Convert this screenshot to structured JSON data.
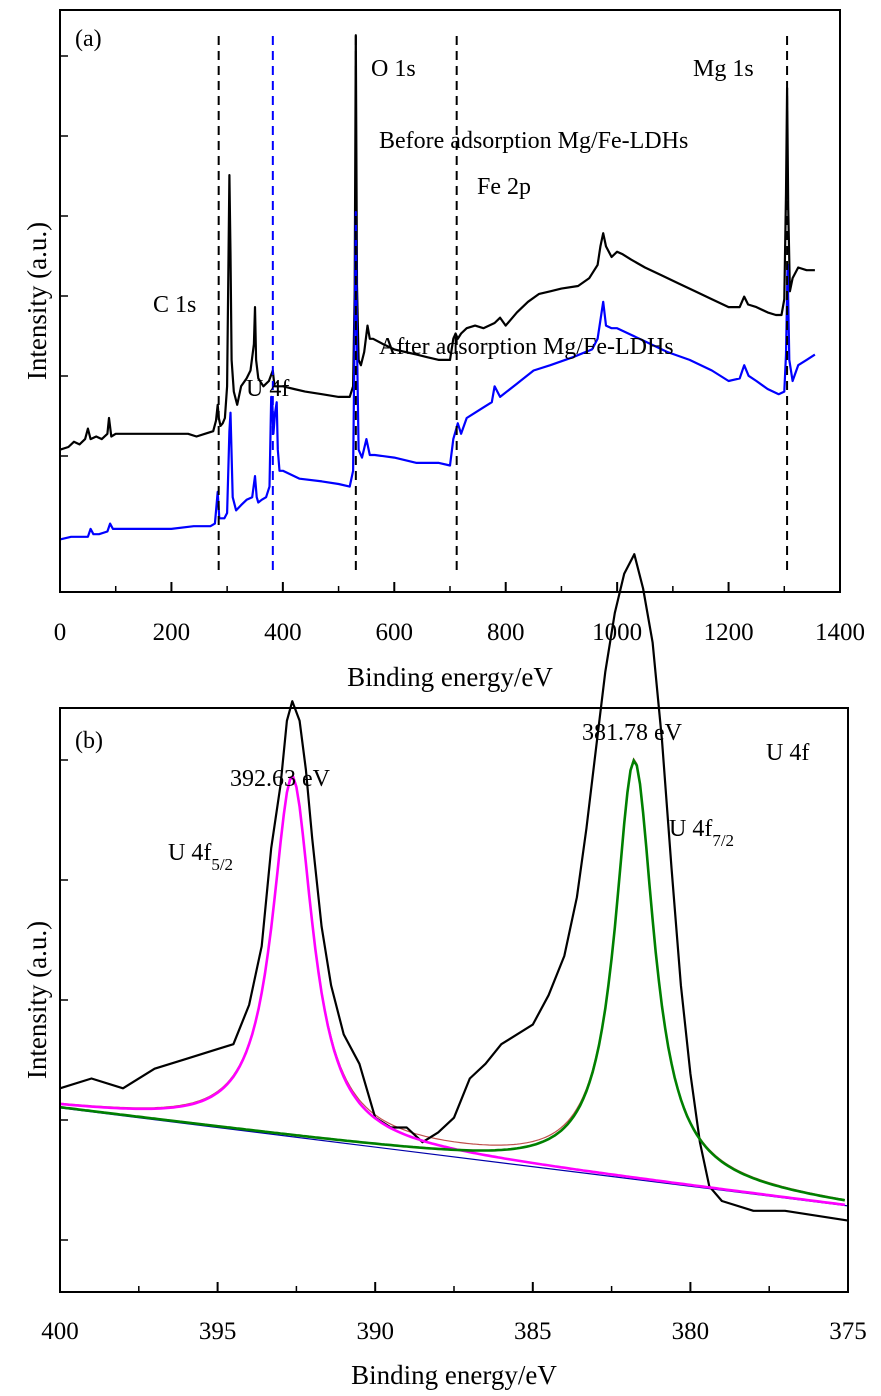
{
  "chart_data": [
    {
      "type": "line",
      "panel_label": "(a)",
      "xlabel": "Binding energy/eV",
      "ylabel": "Intensity (a.u.)",
      "xlim": [
        0,
        1400
      ],
      "xticks": [
        0,
        200,
        400,
        600,
        800,
        1000,
        1200,
        1400
      ],
      "yticks_labeled": false,
      "series": [
        {
          "name": "Before adsorption Mg/Fe-LDHs",
          "color": "#000000",
          "x": [
            0,
            15,
            25,
            35,
            45,
            50,
            55,
            65,
            75,
            85,
            88,
            92,
            100,
            120,
            150,
            180,
            200,
            230,
            245,
            260,
            275,
            280,
            283,
            285,
            288,
            292,
            296,
            300,
            304,
            306,
            308,
            312,
            318,
            325,
            335,
            342,
            348,
            350,
            352,
            356,
            365,
            375,
            382,
            385,
            390,
            400,
            420,
            440,
            470,
            500,
            520,
            526,
            529,
            531,
            533,
            536,
            540,
            546,
            552,
            556,
            562,
            580,
            600,
            620,
            640,
            660,
            680,
            700,
            706,
            710,
            714,
            720,
            730,
            745,
            760,
            780,
            790,
            800,
            820,
            840,
            860,
            880,
            900,
            930,
            950,
            965,
            970,
            975,
            980,
            990,
            1000,
            1010,
            1025,
            1050,
            1080,
            1110,
            1140,
            1170,
            1200,
            1220,
            1228,
            1235,
            1250,
            1270,
            1285,
            1295,
            1300,
            1303,
            1305,
            1307,
            1310,
            1315,
            1325,
            1340,
            1355
          ],
          "y": [
            0.38,
            0.39,
            0.41,
            0.4,
            0.42,
            0.46,
            0.42,
            0.43,
            0.42,
            0.44,
            0.5,
            0.43,
            0.44,
            0.44,
            0.44,
            0.44,
            0.44,
            0.44,
            0.43,
            0.44,
            0.45,
            0.49,
            0.55,
            0.5,
            0.47,
            0.48,
            0.5,
            0.62,
            1.42,
            1.12,
            0.72,
            0.6,
            0.55,
            0.62,
            0.65,
            0.68,
            0.78,
            0.92,
            0.72,
            0.65,
            0.62,
            0.64,
            0.68,
            0.62,
            0.62,
            0.62,
            0.61,
            0.6,
            0.59,
            0.58,
            0.58,
            0.62,
            0.98,
            1.95,
            1.0,
            0.72,
            0.7,
            0.75,
            0.85,
            0.8,
            0.8,
            0.78,
            0.76,
            0.75,
            0.74,
            0.73,
            0.72,
            0.72,
            0.8,
            0.82,
            0.8,
            0.82,
            0.84,
            0.85,
            0.84,
            0.86,
            0.88,
            0.85,
            0.9,
            0.94,
            0.97,
            0.98,
            0.99,
            1.0,
            1.03,
            1.08,
            1.15,
            1.2,
            1.15,
            1.11,
            1.13,
            1.12,
            1.1,
            1.07,
            1.04,
            1.01,
            0.98,
            0.95,
            0.92,
            0.92,
            0.96,
            0.93,
            0.92,
            0.9,
            0.89,
            0.89,
            0.95,
            1.35,
            1.75,
            1.3,
            0.98,
            1.03,
            1.07,
            1.06,
            1.06
          ]
        },
        {
          "name": "After adsorption Mg/Fe-LDHs",
          "color": "#0000ff",
          "x": [
            0,
            20,
            40,
            50,
            55,
            60,
            70,
            85,
            90,
            95,
            110,
            150,
            200,
            240,
            270,
            278,
            283,
            286,
            290,
            295,
            300,
            304,
            306,
            310,
            316,
            325,
            335,
            345,
            350,
            353,
            356,
            362,
            370,
            376,
            379,
            381,
            383,
            386,
            389,
            391,
            394,
            400,
            430,
            470,
            500,
            520,
            526,
            529,
            531,
            533,
            536,
            542,
            550,
            556,
            565,
            600,
            640,
            680,
            700,
            706,
            710,
            714,
            720,
            730,
            745,
            760,
            775,
            780,
            790,
            820,
            850,
            880,
            920,
            955,
            965,
            970,
            975,
            980,
            990,
            1000,
            1020,
            1050,
            1090,
            1130,
            1170,
            1200,
            1220,
            1228,
            1236,
            1250,
            1270,
            1290,
            1300,
            1303,
            1306,
            1309,
            1315,
            1325,
            1340,
            1355
          ],
          "y": [
            0.04,
            0.05,
            0.05,
            0.05,
            0.08,
            0.06,
            0.06,
            0.07,
            0.1,
            0.08,
            0.08,
            0.08,
            0.08,
            0.09,
            0.09,
            0.1,
            0.22,
            0.12,
            0.12,
            0.12,
            0.14,
            0.45,
            0.52,
            0.2,
            0.15,
            0.17,
            0.19,
            0.2,
            0.28,
            0.2,
            0.18,
            0.19,
            0.2,
            0.24,
            0.58,
            0.56,
            0.44,
            0.52,
            0.56,
            0.38,
            0.3,
            0.3,
            0.27,
            0.26,
            0.25,
            0.24,
            0.3,
            0.85,
            1.28,
            0.78,
            0.38,
            0.35,
            0.42,
            0.36,
            0.36,
            0.35,
            0.33,
            0.33,
            0.32,
            0.42,
            0.45,
            0.48,
            0.44,
            0.5,
            0.52,
            0.54,
            0.56,
            0.62,
            0.58,
            0.63,
            0.68,
            0.7,
            0.73,
            0.76,
            0.8,
            0.87,
            0.94,
            0.85,
            0.84,
            0.84,
            0.82,
            0.79,
            0.75,
            0.72,
            0.68,
            0.64,
            0.65,
            0.7,
            0.66,
            0.64,
            0.61,
            0.59,
            0.6,
            0.74,
            1.08,
            0.72,
            0.64,
            0.7,
            0.72,
            0.74
          ]
        }
      ],
      "reference_lines": [
        {
          "x": 284.8,
          "color": "#000000"
        },
        {
          "x": 382,
          "color": "#0000ff"
        },
        {
          "x": 531,
          "color": "#000000"
        },
        {
          "x": 712,
          "color": "#000000"
        },
        {
          "x": 1305,
          "color": "#000000"
        }
      ],
      "annotations": [
        "O 1s",
        "Mg 1s",
        "Before adsorption Mg/Fe-LDHs",
        "Fe 2p",
        "C 1s",
        "After adsorption Mg/Fe-LDHs",
        "U 4f"
      ]
    },
    {
      "type": "line",
      "panel_label": "(b)",
      "xlabel": "Binding energy/eV",
      "ylabel": "Intensity (a.u.)",
      "xlim": [
        400,
        375
      ],
      "x_reversed": true,
      "xticks": [
        400,
        395,
        390,
        385,
        380,
        375
      ],
      "yticks_labeled": false,
      "peaks": [
        {
          "label": "392.63 eV",
          "component": "U 4f",
          "subscript": "5/2",
          "center": 392.63,
          "height": 0.735,
          "fwhm": 1.55,
          "color": "#ff00ff"
        },
        {
          "label": "381.78 eV",
          "component": "U 4f",
          "subscript": "7/2",
          "center": 381.78,
          "height": 0.855,
          "fwhm": 1.5,
          "color": "#008000"
        }
      ],
      "baseline": {
        "x": [
          400,
          375
        ],
        "y": [
          0.29,
          0.09
        ],
        "color": "#0000aa"
      },
      "raw_data": {
        "color": "#000000",
        "x": [
          400,
          399,
          398,
          397,
          396,
          395,
          394.5,
          394,
          393.6,
          393.3,
          393,
          392.8,
          392.63,
          392.4,
          392.2,
          392,
          391.7,
          391.4,
          391,
          390.5,
          390,
          389.5,
          389,
          388.5,
          388,
          387.5,
          387,
          386.5,
          386,
          385.5,
          385,
          384.5,
          384,
          383.6,
          383.3,
          383,
          382.7,
          382.4,
          382.1,
          381.78,
          381.5,
          381.2,
          380.9,
          380.6,
          380.3,
          380,
          379.7,
          379.4,
          379,
          378,
          377,
          376,
          375
        ],
        "y": [
          0.33,
          0.35,
          0.33,
          0.37,
          0.39,
          0.41,
          0.42,
          0.5,
          0.62,
          0.82,
          0.95,
          1.08,
          1.12,
          1.08,
          0.98,
          0.84,
          0.66,
          0.54,
          0.44,
          0.38,
          0.27,
          0.25,
          0.25,
          0.22,
          0.24,
          0.27,
          0.35,
          0.38,
          0.42,
          0.44,
          0.46,
          0.52,
          0.6,
          0.72,
          0.86,
          1.02,
          1.18,
          1.3,
          1.38,
          1.42,
          1.35,
          1.24,
          1.04,
          0.78,
          0.54,
          0.36,
          0.22,
          0.13,
          0.1,
          0.08,
          0.08,
          0.07,
          0.06
        ]
      },
      "annotations": [
        "381.78 eV",
        "392.63 eV",
        "U 4f"
      ]
    }
  ],
  "panel_a": {
    "label": "(a)",
    "xlabel": "Binding energy/eV",
    "ylabel": "Intensity (a.u.)",
    "ticks": [
      "0",
      "200",
      "400",
      "600",
      "800",
      "1000",
      "1200",
      "1400"
    ],
    "anno": {
      "o1s": "O 1s",
      "mg1s": "Mg 1s",
      "before": "Before adsorption Mg/Fe-LDHs",
      "fe2p": "Fe 2p",
      "c1s": "C 1s",
      "after": "After adsorption Mg/Fe-LDHs",
      "u4f": "U 4f"
    }
  },
  "panel_b": {
    "label": "(b)",
    "xlabel": "Binding energy/eV",
    "ylabel": "Intensity (a.u.)",
    "ticks": [
      "400",
      "395",
      "390",
      "385",
      "380",
      "375"
    ],
    "anno": {
      "peak1": "381.78 eV",
      "peak2": "392.63 eV",
      "u4f": "U 4f",
      "u4f_base": "U 4f",
      "sub52": "5/2",
      "sub72": "7/2"
    }
  }
}
